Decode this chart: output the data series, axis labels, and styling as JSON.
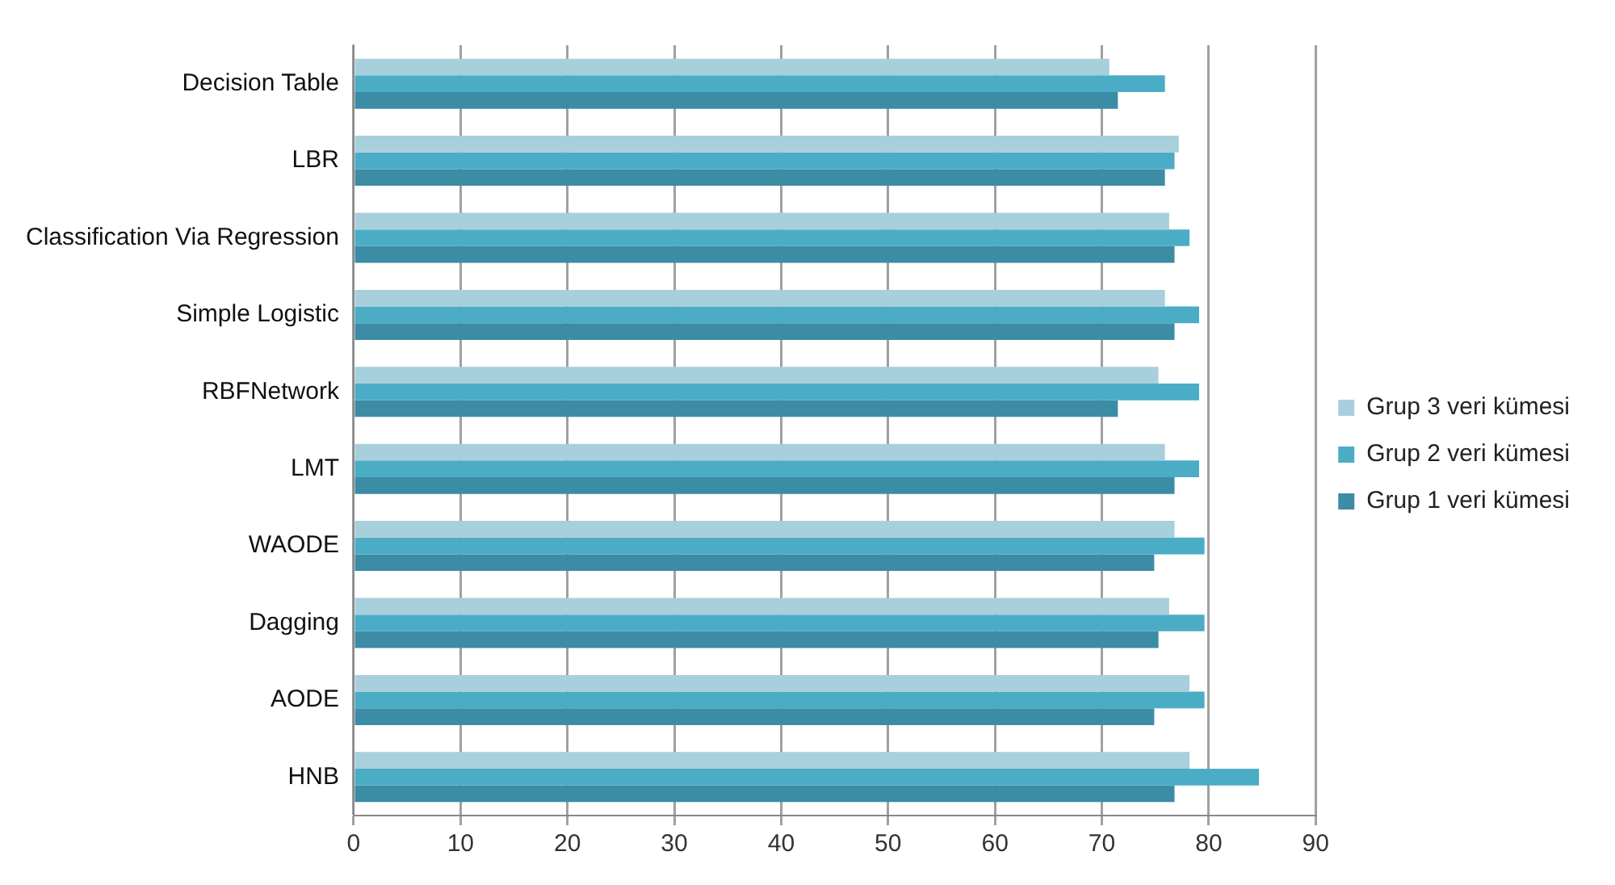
{
  "chart_data": {
    "type": "bar",
    "orientation": "horizontal",
    "categories": [
      "Decision Table",
      "LBR",
      "Classification Via Regression",
      "Simple Logistic",
      "RBFNetwork",
      "LMT",
      "WAODE",
      "Dagging",
      "AODE",
      "HNB"
    ],
    "series": [
      {
        "name": "Grup 3 veri kümesi",
        "color": "#a8cfdc",
        "values": [
          70.7,
          77.2,
          76.3,
          75.9,
          75.3,
          75.9,
          76.8,
          76.3,
          78.2,
          78.2
        ]
      },
      {
        "name": "Grup 2 veri kümesi",
        "color": "#4bacc6",
        "values": [
          75.9,
          76.8,
          78.2,
          79.1,
          79.1,
          79.1,
          79.6,
          79.6,
          79.6,
          84.7
        ]
      },
      {
        "name": "Grup 1 veri kümesi",
        "color": "#3c8ca6",
        "values": [
          71.5,
          75.9,
          76.8,
          76.8,
          71.5,
          76.8,
          74.9,
          75.3,
          74.9,
          76.8
        ]
      }
    ],
    "xlim": [
      0,
      90
    ],
    "xticks": [
      0,
      10,
      20,
      30,
      40,
      50,
      60,
      70,
      80,
      90
    ],
    "grid": "x",
    "legend": "right"
  }
}
